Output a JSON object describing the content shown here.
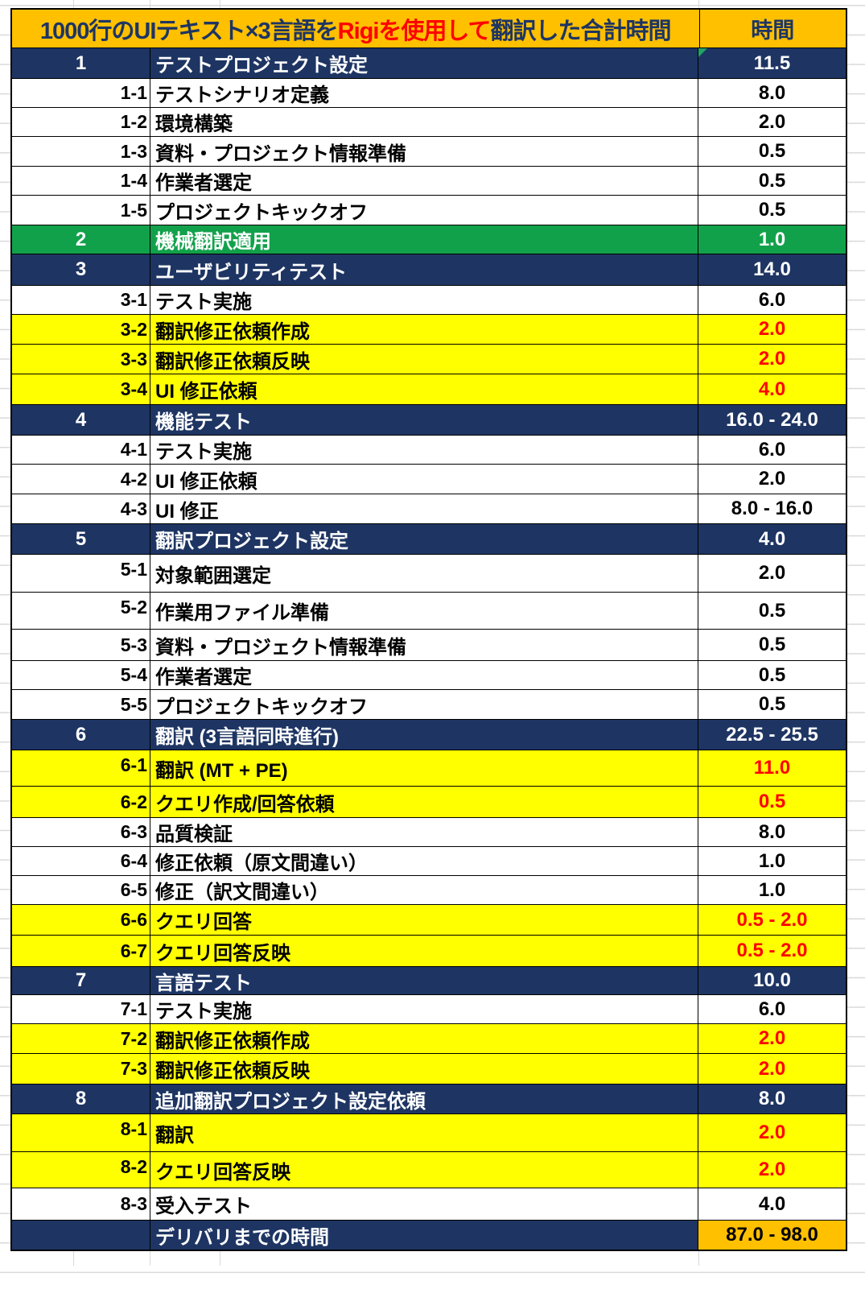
{
  "colors": {
    "navy": "#1E3563",
    "green": "#12A14B",
    "yellow": "#FFFF00",
    "orange": "#FFC000",
    "red": "#FF0000",
    "grid": "#D9D9D9",
    "border": "#000000",
    "marker_green": "#21A366"
  },
  "header": {
    "title_parts": [
      {
        "text": "1000行のUIテキスト×3言語を",
        "color": "#1E3563"
      },
      {
        "text": "Rigiを使用して",
        "color": "#FF0000"
      },
      {
        "text": "翻訳した合計時間",
        "color": "#1E3563"
      }
    ],
    "hours_label": "時間"
  },
  "chart_data": {
    "type": "table",
    "title": "1000行のUIテキスト×3言語をRigiを使用して翻訳した合計時間",
    "title_highlight": "Rigiを使用して",
    "columns": [
      "",
      "",
      "時間"
    ],
    "rows": [
      {
        "kind": "section",
        "num": "1",
        "task": "テストプロジェクト設定",
        "time": "11.5",
        "style": "navy",
        "has_corner_marker": true
      },
      {
        "kind": "item",
        "num": "1-1",
        "task": "テストシナリオ定義",
        "time": "8.0",
        "style": "white"
      },
      {
        "kind": "item",
        "num": "1-2",
        "task": "環境構築",
        "time": "2.0",
        "style": "white"
      },
      {
        "kind": "item",
        "num": "1-3",
        "task": "資料・プロジェクト情報準備",
        "time": "0.5",
        "style": "white"
      },
      {
        "kind": "item",
        "num": "1-4",
        "task": "作業者選定",
        "time": "0.5",
        "style": "white"
      },
      {
        "kind": "item",
        "num": "1-5",
        "task": "プロジェクトキックオフ",
        "time": "0.5",
        "style": "white"
      },
      {
        "kind": "section",
        "num": "2",
        "task": "機械翻訳適用",
        "time": "1.0",
        "style": "green"
      },
      {
        "kind": "section",
        "num": "3",
        "task": "ユーザビリティテスト",
        "time": "14.0",
        "style": "navy"
      },
      {
        "kind": "item",
        "num": "3-1",
        "task": "テスト実施",
        "time": "6.0",
        "style": "white"
      },
      {
        "kind": "item",
        "num": "3-2",
        "task": "翻訳修正依頼作成",
        "time": "2.0",
        "style": "yellow"
      },
      {
        "kind": "item",
        "num": "3-3",
        "task": "翻訳修正依頼反映",
        "time": "2.0",
        "style": "yellow"
      },
      {
        "kind": "item",
        "num": "3-4",
        "task": "UI 修正依頼",
        "time": "4.0",
        "style": "yellow"
      },
      {
        "kind": "section",
        "num": "4",
        "task": "機能テスト",
        "time": "16.0 - 24.0",
        "style": "navy"
      },
      {
        "kind": "item",
        "num": "4-1",
        "task": "テスト実施",
        "time": "6.0",
        "style": "white"
      },
      {
        "kind": "item",
        "num": "4-2",
        "task": "UI 修正依頼",
        "time": "2.0",
        "style": "white"
      },
      {
        "kind": "item",
        "num": "4-3",
        "task": "UI 修正",
        "time": "8.0 - 16.0",
        "style": "white"
      },
      {
        "kind": "section",
        "num": "5",
        "task": "翻訳プロジェクト設定",
        "time": "4.0",
        "style": "navy"
      },
      {
        "kind": "item",
        "num": "5-1",
        "task": "対象範囲選定",
        "time": "2.0",
        "style": "white"
      },
      {
        "kind": "item",
        "num": "5-2",
        "task": "作業用ファイル準備",
        "time": "0.5",
        "style": "white"
      },
      {
        "kind": "item",
        "num": "5-3",
        "task": "資料・プロジェクト情報準備",
        "time": "0.5",
        "style": "white"
      },
      {
        "kind": "item",
        "num": "5-4",
        "task": "作業者選定",
        "time": "0.5",
        "style": "white"
      },
      {
        "kind": "item",
        "num": "5-5",
        "task": "プロジェクトキックオフ",
        "time": "0.5",
        "style": "white"
      },
      {
        "kind": "section",
        "num": "6",
        "task": "翻訳 (3言語同時進行)",
        "time": "22.5 - 25.5",
        "style": "navy"
      },
      {
        "kind": "item",
        "num": "6-1",
        "task": "翻訳 (MT + PE)",
        "time": "11.0",
        "style": "yellow"
      },
      {
        "kind": "item",
        "num": "6-2",
        "task": "クエリ作成/回答依頼",
        "time": "0.5",
        "style": "yellow"
      },
      {
        "kind": "item",
        "num": "6-3",
        "task": "品質検証",
        "time": "8.0",
        "style": "white"
      },
      {
        "kind": "item",
        "num": "6-4",
        "task": "修正依頼（原文間違い）",
        "time": "1.0",
        "style": "white"
      },
      {
        "kind": "item",
        "num": "6-5",
        "task": "修正（訳文間違い）",
        "time": "1.0",
        "style": "white"
      },
      {
        "kind": "item",
        "num": "6-6",
        "task": "クエリ回答",
        "time": "0.5 - 2.0",
        "style": "yellow"
      },
      {
        "kind": "item",
        "num": "6-7",
        "task": "クエリ回答反映",
        "time": "0.5 - 2.0",
        "style": "yellow"
      },
      {
        "kind": "section",
        "num": "7",
        "task": "言語テスト",
        "time": "10.0",
        "style": "navy"
      },
      {
        "kind": "item",
        "num": "7-1",
        "task": "テスト実施",
        "time": "6.0",
        "style": "white"
      },
      {
        "kind": "item",
        "num": "7-2",
        "task": "翻訳修正依頼作成",
        "time": "2.0",
        "style": "yellow"
      },
      {
        "kind": "item",
        "num": "7-3",
        "task": "翻訳修正依頼反映",
        "time": "2.0",
        "style": "yellow"
      },
      {
        "kind": "section",
        "num": "8",
        "task": "追加翻訳プロジェクト設定依頼",
        "time": "8.0",
        "style": "navy"
      },
      {
        "kind": "item",
        "num": "8-1",
        "task": "翻訳",
        "time": "2.0",
        "style": "yellow"
      },
      {
        "kind": "item",
        "num": "8-2",
        "task": "クエリ回答反映",
        "time": "2.0",
        "style": "yellow"
      },
      {
        "kind": "item",
        "num": "8-3",
        "task": "受入テスト",
        "time": "4.0",
        "style": "white"
      },
      {
        "kind": "total",
        "num": "",
        "task": "デリバリまでの時間",
        "time": "87.0 - 98.0",
        "style": "total"
      }
    ]
  }
}
